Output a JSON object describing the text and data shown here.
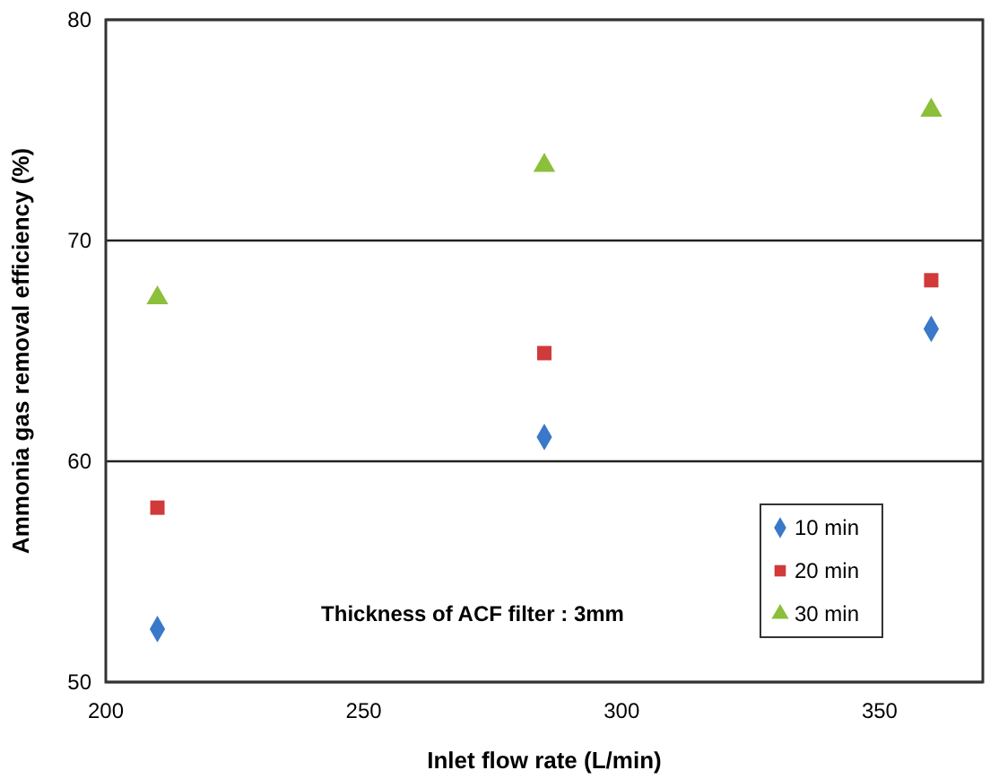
{
  "chart_data": {
    "type": "scatter",
    "xlabel": "Inlet flow rate (L/min)",
    "ylabel": "Ammonia gas removal efficiency (%)",
    "x": [
      210,
      285,
      360
    ],
    "series": [
      {
        "name": "10 min",
        "color": "#3a78c9",
        "marker": "diamond",
        "values": [
          52.4,
          61.1,
          66.0
        ]
      },
      {
        "name": "20 min",
        "color": "#d03a3a",
        "marker": "square",
        "values": [
          57.9,
          64.9,
          68.2
        ]
      },
      {
        "name": "30 min",
        "color": "#8cbf3a",
        "marker": "triangle",
        "values": [
          67.4,
          73.4,
          75.9
        ]
      }
    ],
    "xlim": [
      200,
      370
    ],
    "xticks": [
      200,
      250,
      300,
      350
    ],
    "ylim": [
      50,
      80
    ],
    "yticks": [
      50,
      60,
      70,
      80
    ],
    "grid": "y",
    "legend": "bottom right",
    "annotations": [
      "Thickness of ACF filter : 3mm"
    ]
  }
}
